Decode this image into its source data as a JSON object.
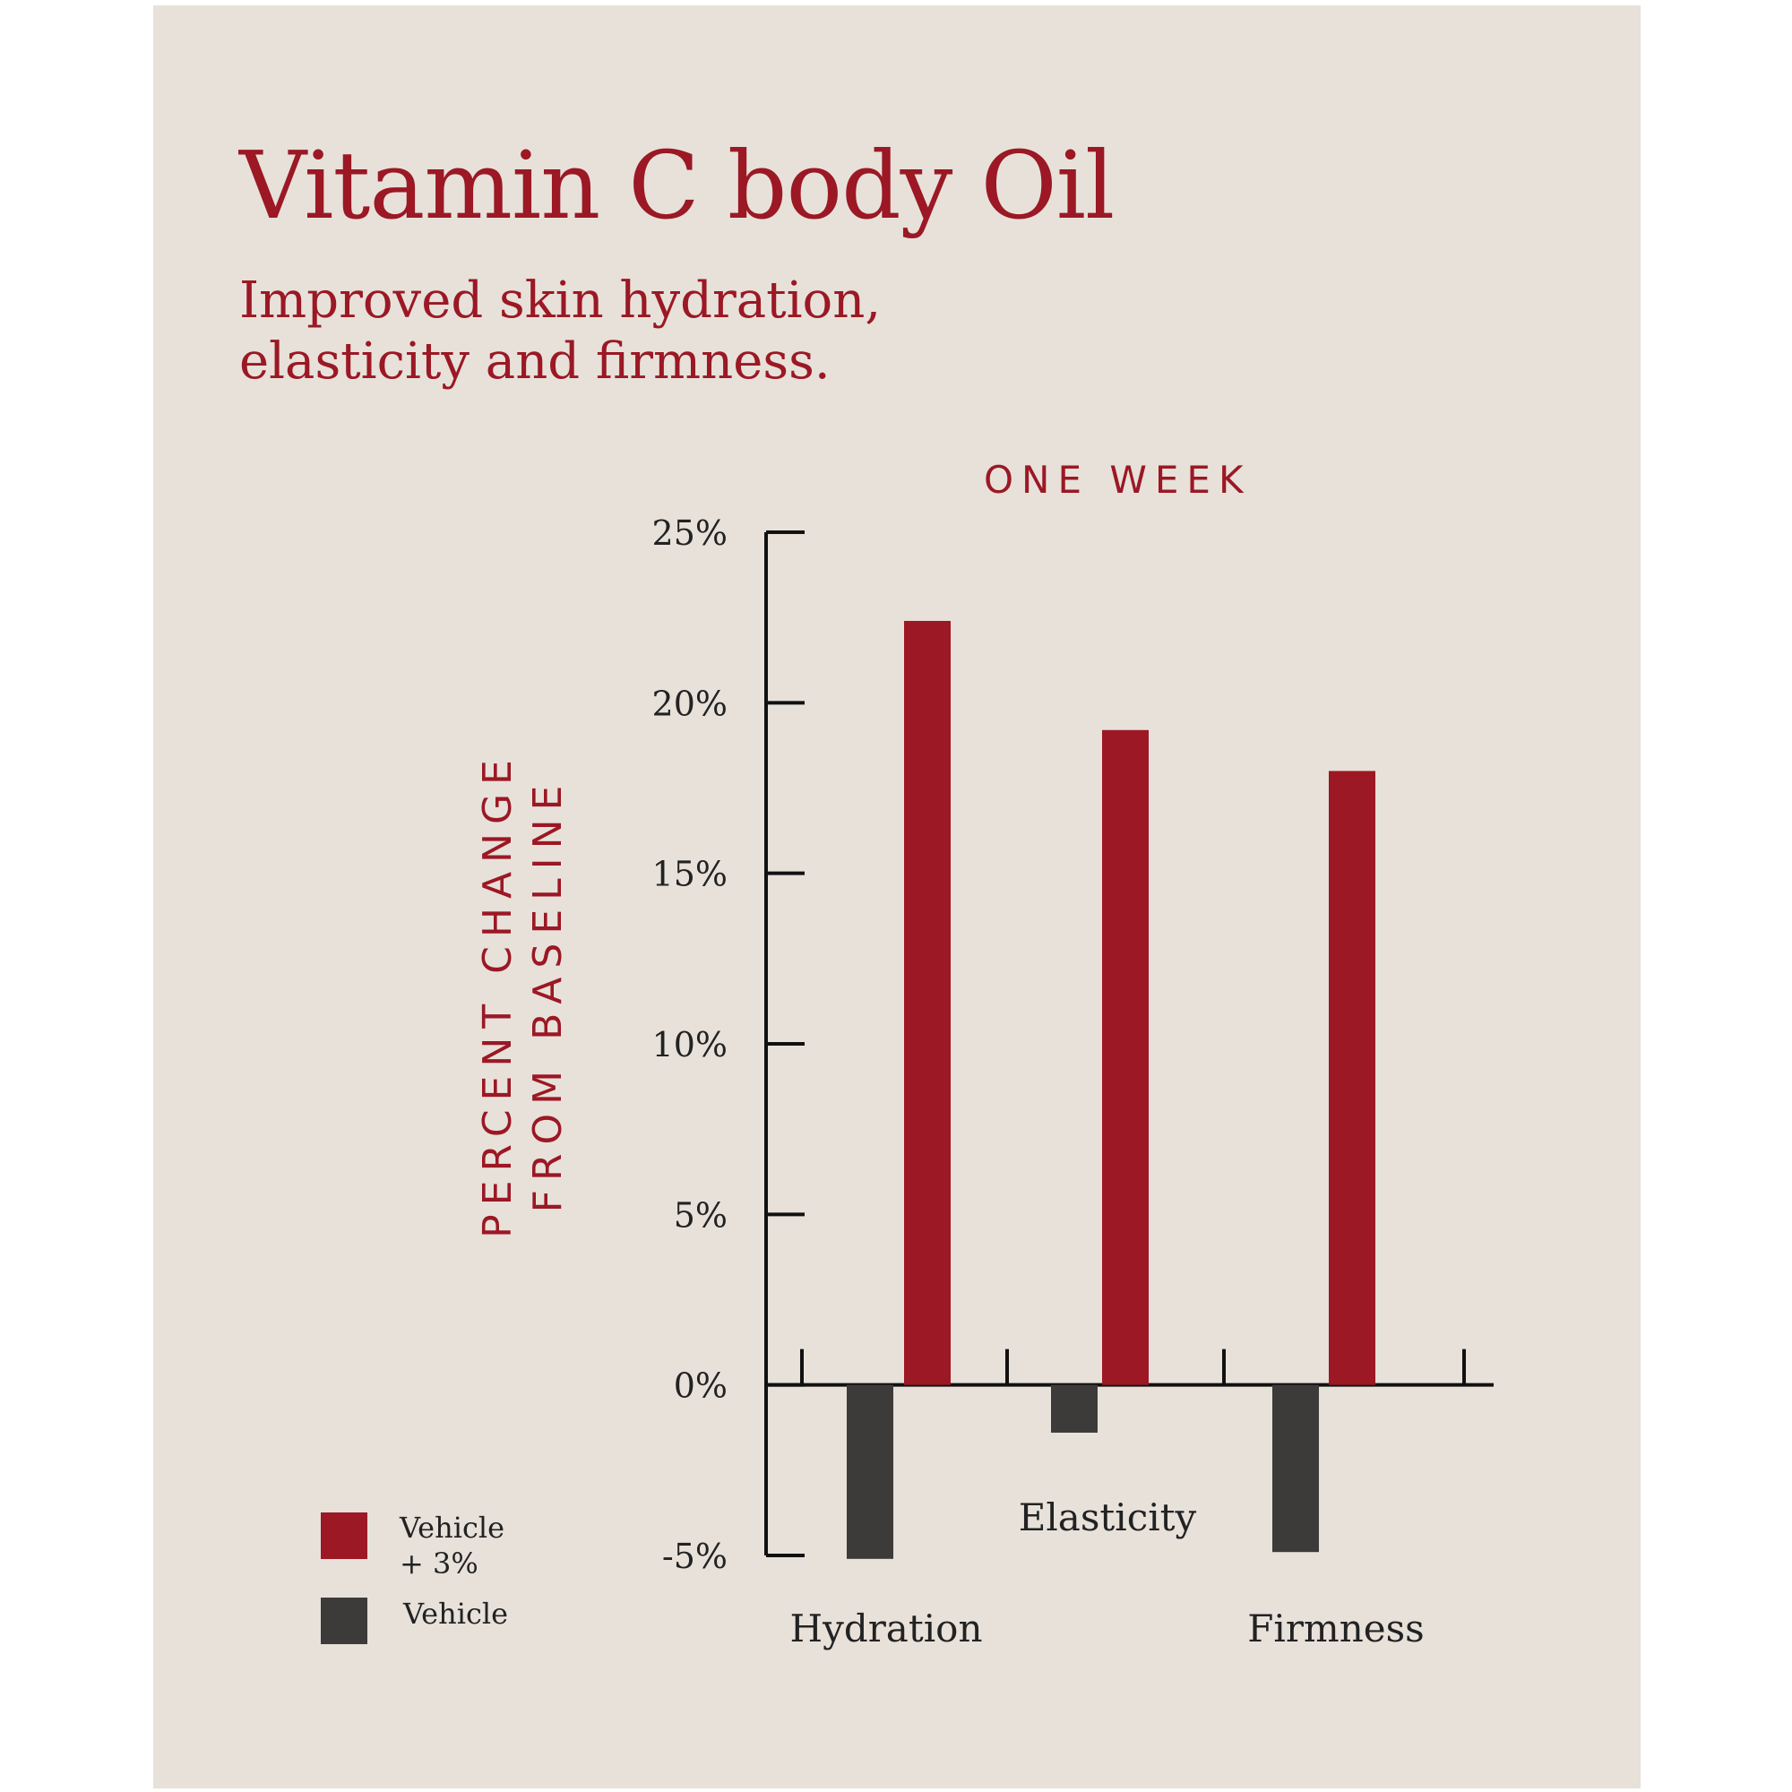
{
  "header": {
    "title": "Vitamin C body Oil",
    "subtitle": "Improved skin hydration, elasticity and firmness."
  },
  "colors": {
    "accent": "#9b1824",
    "vehicle": "#3c3b39",
    "background": "#e7e1da",
    "axis": "#111111"
  },
  "chart_data": {
    "type": "bar",
    "title": "ONE WEEK",
    "ylabel_lines": [
      "PERCENT CHANGE",
      "FROM BASELINE"
    ],
    "xlabel": "",
    "categories": [
      "Hydration",
      "Elasticity",
      "Firmness"
    ],
    "ylim": [
      -5,
      25
    ],
    "yticks": [
      -5,
      0,
      5,
      10,
      15,
      20,
      25
    ],
    "ytick_labels": [
      "-5%",
      "0%",
      "5%",
      "10%",
      "15%",
      "20%",
      "25%"
    ],
    "series": [
      {
        "name": "Vehicle",
        "values": [
          -5.1,
          -1.4,
          -4.9
        ]
      },
      {
        "name": "Vehicle + 3%",
        "values": [
          22.4,
          19.2,
          18.0
        ]
      }
    ],
    "grid": false,
    "legend_position": "bottom-left"
  },
  "legend": [
    {
      "label_line1": "Vehicle",
      "label_line2": "+ 3%"
    },
    {
      "label_line1": "Vehicle",
      "label_line2": ""
    }
  ]
}
